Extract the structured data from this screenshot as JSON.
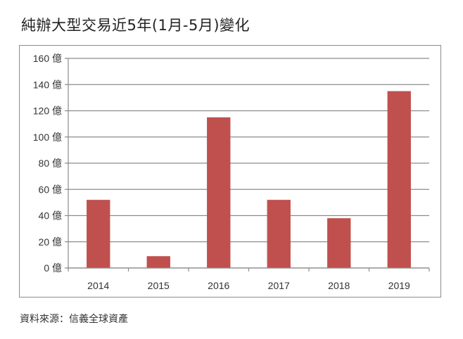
{
  "title": "純辦大型交易近5年(1月-5月)變化",
  "source": "資料來源：信義全球資產",
  "colors": {
    "bar": "#c0504d",
    "grid": "#8c8c8c",
    "axis": "#8c8c8c",
    "frame": "#8c8c8c"
  },
  "chart_data": {
    "type": "bar",
    "title": "純辦大型交易近5年(1月-5月)變化",
    "xlabel": "",
    "ylabel": "",
    "categories": [
      "2014",
      "2015",
      "2016",
      "2017",
      "2018",
      "2019"
    ],
    "values": [
      52,
      9,
      115,
      52,
      38,
      135
    ],
    "unit": "億",
    "ylim": [
      0,
      160
    ],
    "yticks": [
      0,
      20,
      40,
      60,
      80,
      100,
      120,
      140,
      160
    ],
    "ytick_labels": [
      "0 億",
      "20 億",
      "40 億",
      "60 億",
      "80 億",
      "100 億",
      "120 億",
      "140 億",
      "160 億"
    ],
    "grid": true,
    "legend": null,
    "source": "資料來源：信義全球資產"
  }
}
